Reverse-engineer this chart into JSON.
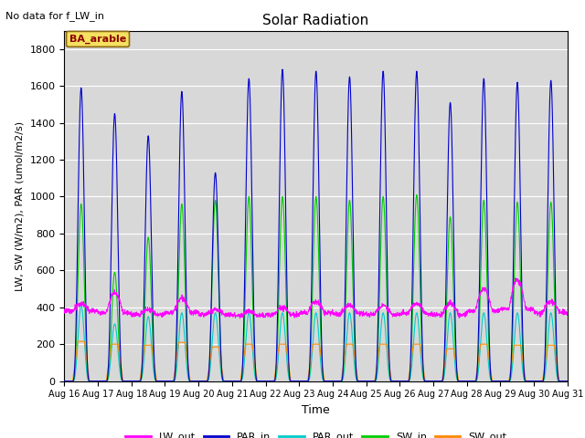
{
  "title": "Solar Radiation",
  "subtitle": "No data for f_LW_in",
  "xlabel": "Time",
  "ylabel": "LW, SW (W/m2), PAR (umol/m2/s)",
  "legend_label": "BA_arable",
  "ylim": [
    0,
    1900
  ],
  "yticks": [
    0,
    200,
    400,
    600,
    800,
    1000,
    1200,
    1400,
    1600,
    1800
  ],
  "colors": {
    "LW_out": "#ff00ff",
    "PAR_in": "#0000cc",
    "PAR_out": "#00cccc",
    "SW_in": "#00cc00",
    "SW_out": "#ff8800"
  },
  "bg_color": "#d8d8d8",
  "par_in_peaks": [
    1590,
    1450,
    1330,
    1570,
    1130,
    1640,
    1690,
    1680,
    1650,
    1680,
    1680,
    1510,
    1640,
    1620,
    1630
  ],
  "par_out_peaks": [
    410,
    310,
    350,
    370,
    370,
    370,
    370,
    370,
    370,
    370,
    370,
    370,
    370,
    370,
    370
  ],
  "sw_in_peaks": [
    960,
    590,
    780,
    960,
    980,
    1000,
    1000,
    1000,
    980,
    1000,
    1010,
    890,
    980,
    970,
    970
  ],
  "sw_out_peaks": [
    215,
    200,
    195,
    210,
    185,
    200,
    200,
    200,
    200,
    200,
    200,
    175,
    200,
    195,
    195
  ],
  "lw_out_day": [
    420,
    480,
    390,
    450,
    390,
    380,
    400,
    430,
    410,
    410,
    420,
    420,
    500,
    550,
    430
  ],
  "lw_out_night": [
    380,
    370,
    360,
    370,
    360,
    355,
    360,
    370,
    365,
    360,
    365,
    360,
    380,
    390,
    370
  ]
}
